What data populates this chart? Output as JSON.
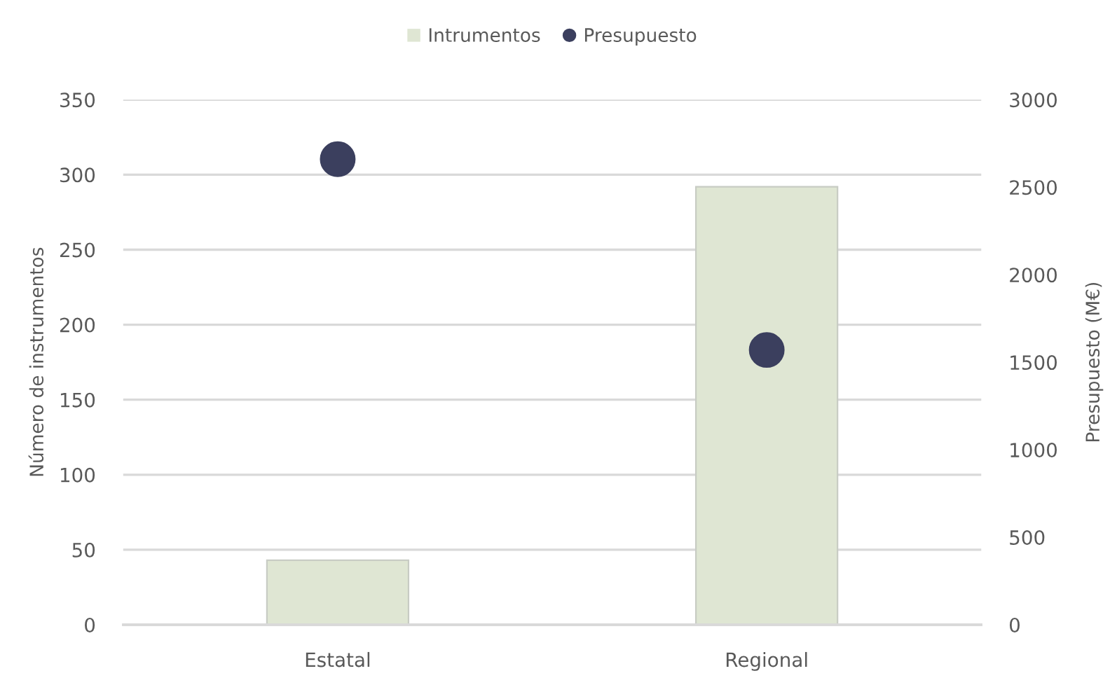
{
  "chart_data": {
    "type": "bar",
    "categories": [
      "Estatal",
      "Regional"
    ],
    "ylabel": "Número de instrumentos",
    "y2label": "Presupuesto (M€)",
    "series": [
      {
        "name": "Intrumentos",
        "color": "#dfe6d3",
        "values": [
          43,
          292
        ]
      },
      {
        "name": "Presupuesto",
        "type": "scatter",
        "axis": "y2",
        "color": "#3b3f5e",
        "values": [
          2660,
          1570
        ]
      }
    ],
    "ylim": [
      0,
      350
    ],
    "yticks": [
      0,
      50,
      100,
      150,
      200,
      250,
      300,
      350
    ],
    "y2lim": [
      0,
      3000
    ],
    "y2ticks": [
      0,
      500,
      1000,
      1500,
      2000,
      2500,
      3000
    ],
    "grid": "y",
    "legend": "top",
    "marker": "circle"
  }
}
